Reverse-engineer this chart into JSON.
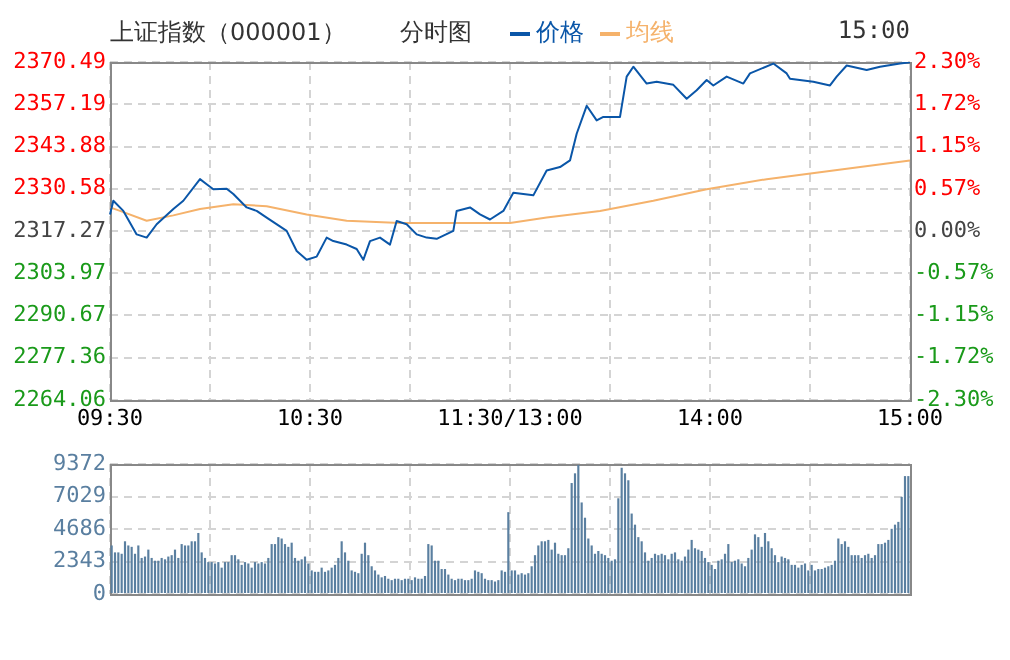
{
  "chart_data": [
    {
      "type": "line",
      "title": "上证指数（000001）",
      "subtitle": "分时图",
      "annotations": [
        "15:00"
      ],
      "legend": "top",
      "grid": true,
      "categories": [
        "09:30",
        null,
        null,
        null,
        null,
        null,
        null,
        null,
        null,
        null,
        null,
        null,
        null,
        null,
        null,
        null,
        null,
        null,
        null,
        null,
        null,
        null,
        null,
        null,
        null,
        null,
        null,
        null,
        null,
        null,
        null,
        null,
        null,
        null,
        null,
        null,
        null,
        null,
        null,
        null,
        null,
        null,
        null,
        null,
        null,
        null,
        null,
        null,
        null,
        null,
        null,
        null,
        null,
        null,
        null,
        null,
        null,
        null,
        null,
        null,
        "10:30",
        null,
        null,
        null,
        null,
        null,
        null,
        null,
        null,
        null,
        null,
        null,
        null,
        null,
        null,
        null,
        null,
        null,
        null,
        null,
        null,
        null,
        null,
        null,
        null,
        null,
        null,
        null,
        null,
        null,
        null,
        null,
        null,
        null,
        null,
        null,
        null,
        null,
        null,
        null,
        null,
        null,
        null,
        null,
        null,
        null,
        null,
        null,
        null,
        null,
        null,
        null,
        null,
        null,
        null,
        null,
        null,
        null,
        null,
        null,
        "11:30/13:00",
        null,
        null,
        null,
        null,
        null,
        null,
        null,
        null,
        null,
        null,
        null,
        null,
        null,
        null,
        null,
        null,
        null,
        null,
        null,
        null,
        null,
        null,
        null,
        null,
        null,
        null,
        null,
        null,
        null,
        null,
        null,
        null,
        null,
        null,
        null,
        null,
        null,
        null,
        null,
        null,
        null,
        null,
        null,
        null,
        null,
        null,
        null,
        null,
        null,
        null,
        null,
        null,
        null,
        null,
        null,
        null,
        null,
        null,
        null,
        "14:00",
        null,
        null,
        null,
        null,
        null,
        null,
        null,
        null,
        null,
        null,
        null,
        null,
        null,
        null,
        null,
        null,
        null,
        null,
        null,
        null,
        null,
        null,
        null,
        null,
        null,
        null,
        null,
        null,
        null,
        null,
        null,
        null,
        null,
        null,
        null,
        null,
        null,
        null,
        null,
        null,
        null,
        null,
        null,
        null,
        null,
        null,
        null,
        null,
        null,
        null,
        null,
        null,
        null,
        null,
        null,
        null,
        null,
        null,
        null,
        "15:00"
      ],
      "ylim": [
        2264.06,
        2370.49
      ],
      "yticks": [
        2264.06,
        2277.36,
        2290.67,
        2303.97,
        2317.27,
        2330.58,
        2343.88,
        2357.19,
        2370.49
      ],
      "y2lim": [
        -2.3,
        2.3
      ],
      "y2ticks": [
        {
          "value": -2.3,
          "label": "-2.30%"
        },
        {
          "value": -1.72,
          "label": "-1.72%"
        },
        {
          "value": -1.15,
          "label": "-1.15%"
        },
        {
          "value": -0.57,
          "label": "-0.57%"
        },
        {
          "value": 0,
          "label": "0.00%"
        },
        {
          "value": 0.57,
          "label": "0.57%"
        },
        {
          "value": 1.15,
          "label": "1.15%"
        },
        {
          "value": 1.72,
          "label": "1.72%"
        },
        {
          "value": 2.3,
          "label": "2.30%"
        }
      ],
      "series": [
        {
          "name": "价格",
          "color": "#0a56a8",
          "values": [
            2322.5,
            2326.8,
            null,
            null,
            2323.6,
            null,
            null,
            null,
            2316.2,
            null,
            null,
            2315.2,
            null,
            null,
            2319.4,
            null,
            null,
            null,
            null,
            2324.2,
            null,
            null,
            2326.8,
            null,
            null,
            null,
            null,
            2333.6,
            null,
            2332.0,
            null,
            2330.4,
            null,
            null,
            null,
            2330.6,
            null,
            2328.9,
            null,
            null,
            null,
            2324.7,
            null,
            null,
            2323.6,
            null,
            null,
            2321.5,
            null,
            null,
            null,
            null,
            null,
            2317.3,
            null,
            null,
            2311.0,
            null,
            null,
            2308.2,
            null,
            null,
            2309.2,
            null,
            null,
            2315.2,
            null,
            2314.1,
            null,
            null,
            null,
            2313.0,
            null,
            null,
            2311.6,
            null,
            2308.2,
            null,
            2314.1,
            null,
            null,
            2315.2,
            null,
            null,
            2313.0,
            null,
            2320.4,
            null,
            null,
            2319.4,
            null,
            null,
            2316.2,
            null,
            null,
            2315.2,
            null,
            null,
            2314.8,
            null,
            null,
            null,
            null,
            2317.3,
            2323.6,
            null,
            null,
            null,
            2324.7,
            null,
            null,
            2322.5,
            null,
            null,
            2320.9,
            null,
            null,
            null,
            2323.6,
            null,
            null,
            2329.3,
            null,
            null,
            null,
            null,
            null,
            2328.5,
            null,
            null,
            null,
            2336.3,
            null,
            null,
            null,
            2337.4,
            null,
            null,
            2339.5,
            null,
            2347.9,
            null,
            null,
            2356.7,
            null,
            null,
            2352.1,
            null,
            2353.2,
            null,
            null,
            null,
            null,
            2353.2,
            null,
            2365.9,
            null,
            2369.0,
            null,
            null,
            null,
            2363.7,
            null,
            null,
            2364.3,
            null,
            null,
            null,
            null,
            2363.3,
            null,
            null,
            null,
            2358.9,
            null,
            null,
            2361.6,
            null,
            null,
            2364.8,
            null,
            2363.1,
            null,
            null,
            null,
            2365.9,
            null,
            null,
            null,
            null,
            2363.7,
            null,
            2366.9,
            null,
            null,
            null,
            null,
            null,
            null,
            2370.0,
            null,
            null,
            null,
            2366.9,
            2365.2,
            null,
            null,
            null,
            null,
            null,
            null,
            2364.3,
            null,
            null,
            null,
            null,
            2363.1,
            null,
            2365.9,
            null,
            null,
            2369.4,
            null,
            null,
            null,
            null,
            null,
            2368.0,
            null,
            null,
            null,
            2369.0,
            null,
            null,
            null,
            null,
            null,
            2370.0,
            null,
            null,
            2370.4
          ]
        },
        {
          "name": "均线",
          "color": "#f5b26b",
          "values": [
            2324.7,
            null,
            null,
            2323.6,
            null,
            null,
            null,
            null,
            null,
            null,
            null,
            2320.5,
            null,
            null,
            null,
            null,
            null,
            null,
            null,
            2322.2,
            null,
            null,
            null,
            null,
            null,
            null,
            null,
            2324.2,
            null,
            null,
            null,
            null,
            null,
            null,
            null,
            null,
            null,
            2325.7,
            null,
            null,
            null,
            null,
            null,
            null,
            null,
            null,
            null,
            2325.1,
            null,
            null,
            null,
            null,
            null,
            null,
            null,
            null,
            null,
            null,
            null,
            2322.5,
            null,
            null,
            null,
            null,
            null,
            null,
            null,
            null,
            null,
            null,
            null,
            2320.5,
            null,
            null,
            null,
            null,
            null,
            null,
            null,
            null,
            null,
            null,
            null,
            null,
            null,
            null,
            null,
            2319.8,
            null,
            null,
            null,
            null,
            null,
            null,
            null,
            null,
            null,
            null,
            null,
            null,
            null,
            null,
            null,
            null,
            null,
            null,
            null,
            2319.8,
            null,
            null,
            null,
            null,
            null,
            null,
            null,
            null,
            null,
            null,
            null,
            null,
            2319.8,
            null,
            null,
            null,
            null,
            null,
            null,
            null,
            null,
            null,
            null,
            2321.5,
            null,
            null,
            null,
            null,
            null,
            null,
            null,
            null,
            null,
            null,
            null,
            null,
            null,
            null,
            null,
            2323.6,
            null,
            null,
            null,
            null,
            null,
            null,
            null,
            null,
            null,
            null,
            null,
            null,
            null,
            null,
            null,
            2326.8,
            null,
            null,
            null,
            null,
            null,
            null,
            null,
            null,
            null,
            null,
            null,
            null,
            null,
            null,
            null,
            2330.4,
            null,
            null,
            null,
            null,
            null,
            null,
            null,
            null,
            null,
            null,
            null,
            null,
            null,
            null,
            null,
            null,
            null,
            2333.6,
            null,
            null,
            null,
            null,
            null,
            null,
            null,
            null,
            null,
            null,
            null,
            null,
            null,
            null,
            null,
            null,
            null,
            null,
            null,
            2336.3,
            null,
            null,
            null,
            null,
            null,
            null,
            null,
            null,
            null,
            null,
            null,
            null,
            null,
            null,
            null,
            null,
            null,
            null,
            null,
            null,
            null,
            null,
            2339.5
          ]
        }
      ]
    },
    {
      "type": "bar",
      "color": "#5a7fa0",
      "grid": true,
      "tick_labels": "y",
      "categories": [
        null,
        null,
        null,
        null,
        null,
        null,
        null,
        null,
        null,
        null,
        null,
        null,
        null,
        null,
        null,
        null,
        null,
        null,
        null,
        null,
        null,
        null,
        null,
        null,
        null,
        null,
        null,
        null,
        null,
        null,
        null,
        null,
        null,
        null,
        null,
        null,
        null,
        null,
        null,
        null,
        null,
        null,
        null,
        null,
        null,
        null,
        null,
        null,
        null,
        null,
        null,
        null,
        null,
        null,
        null,
        null,
        null,
        null,
        null,
        null,
        null,
        null,
        null,
        null,
        null,
        null,
        null,
        null,
        null,
        null,
        null,
        null,
        null,
        null,
        null,
        null,
        null,
        null,
        null,
        null,
        null,
        null,
        null,
        null,
        null,
        null,
        null,
        null,
        null,
        null,
        null,
        null,
        null,
        null,
        null,
        null,
        null,
        null,
        null,
        null,
        null,
        null,
        null,
        null,
        null,
        null,
        null,
        null,
        null,
        null,
        null,
        null,
        null,
        null,
        null,
        null,
        null,
        null,
        null,
        null,
        null,
        null,
        null,
        null,
        null,
        null,
        null,
        null,
        null,
        null,
        null,
        null,
        null,
        null,
        null,
        null,
        null,
        null,
        null,
        null,
        null,
        null,
        null,
        null,
        null,
        null,
        null,
        null,
        null,
        null,
        null,
        null,
        null,
        null,
        null,
        null,
        null,
        null,
        null,
        null,
        null,
        null,
        null,
        null,
        null,
        null,
        null,
        null,
        null,
        null,
        null,
        null,
        null,
        null,
        null,
        null,
        null,
        null,
        null,
        null,
        null,
        null,
        null,
        null,
        null,
        null,
        null,
        null,
        null,
        null,
        null,
        null,
        null,
        null,
        null,
        null,
        null,
        null,
        null,
        null,
        null,
        null,
        null,
        null,
        null,
        null,
        null,
        null,
        null,
        null,
        null,
        null,
        null,
        null,
        null,
        null,
        null,
        null,
        null,
        null,
        null,
        null,
        null,
        null,
        null,
        null,
        null,
        null,
        null,
        null,
        null,
        null,
        null,
        null,
        null,
        null,
        null,
        null,
        null,
        null
      ],
      "ylim": [
        0,
        9372
      ],
      "yticks": [
        0,
        2343,
        4686,
        7029,
        9372
      ],
      "values": [
        3500,
        3000,
        3000,
        2900,
        3800,
        3500,
        3400,
        2900,
        3500,
        2600,
        2700,
        3200,
        2600,
        2400,
        2400,
        2600,
        2500,
        2700,
        2800,
        3200,
        2600,
        3600,
        3500,
        3500,
        3800,
        3800,
        4400,
        3000,
        2600,
        2300,
        2300,
        2200,
        2300,
        1900,
        2300,
        2300,
        2800,
        2800,
        2500,
        2100,
        2300,
        2200,
        1900,
        2300,
        2200,
        2300,
        2200,
        2600,
        3600,
        3600,
        4100,
        4000,
        3600,
        3400,
        3700,
        2600,
        2400,
        2500,
        2700,
        2200,
        1700,
        1600,
        1600,
        1900,
        1600,
        1700,
        1900,
        2100,
        2600,
        3800,
        3000,
        2400,
        1700,
        1600,
        1500,
        2900,
        3700,
        2800,
        2000,
        1700,
        1400,
        1200,
        1300,
        1100,
        1000,
        1100,
        1100,
        1000,
        1100,
        1100,
        1000,
        1200,
        1100,
        1100,
        1300,
        3600,
        3500,
        2400,
        2400,
        1800,
        1800,
        1400,
        1100,
        1000,
        1100,
        1100,
        1000,
        1000,
        1100,
        1700,
        1600,
        1500,
        1100,
        1000,
        1000,
        900,
        1000,
        1700,
        1600,
        5900,
        1700,
        1700,
        1400,
        1500,
        1400,
        1500,
        2000,
        2800,
        3500,
        3800,
        3800,
        3900,
        3200,
        3700,
        2900,
        2800,
        2800,
        3300,
        8000,
        8700,
        9300,
        6600,
        5500,
        4000,
        3500,
        2900,
        3100,
        2900,
        2800,
        2600,
        2400,
        2500,
        6900,
        9100,
        8700,
        8200,
        5800,
        5000,
        4100,
        3800,
        3000,
        2400,
        2600,
        2900,
        2800,
        2900,
        2800,
        2500,
        2900,
        3000,
        2500,
        2400,
        2700,
        3200,
        3900,
        3300,
        3200,
        3100,
        2600,
        2300,
        2100,
        1800,
        2400,
        2500,
        2900,
        3600,
        2300,
        2400,
        2500,
        2200,
        2000,
        2600,
        3200,
        4300,
        4100,
        3400,
        4400,
        3800,
        3300,
        2800,
        2300,
        2700,
        2600,
        2500,
        2100,
        2100,
        1900,
        2100,
        2200,
        1700,
        2100,
        1700,
        1800,
        1800,
        1900,
        2000,
        2100,
        2400,
        4000,
        3600,
        3800,
        3400,
        2800,
        2800,
        2800,
        2600,
        2800,
        2900,
        2600,
        2800,
        3600,
        3600,
        3700,
        3900,
        4700,
        5000,
        5200,
        7000,
        8500,
        8500
      ]
    }
  ]
}
